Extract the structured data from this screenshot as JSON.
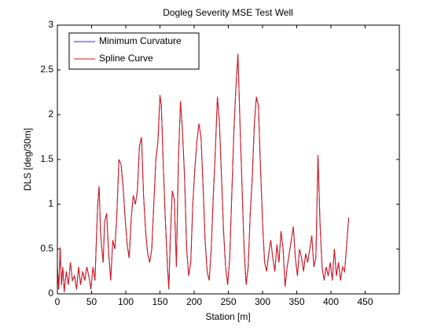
{
  "chart_data": {
    "type": "line",
    "title": "Dogleg Severity MSE Test Well",
    "xlabel": "Station [m]",
    "ylabel": "DLS [deg/30m]",
    "xlim": [
      0,
      500
    ],
    "xticks": [
      0,
      50,
      100,
      150,
      200,
      250,
      300,
      350,
      400,
      450
    ],
    "ylim": [
      0,
      3
    ],
    "yticks": [
      0,
      0.5,
      1,
      1.5,
      2,
      2.5,
      3
    ],
    "grid": false,
    "legend": "upper-left",
    "x": [
      0,
      2,
      4,
      6,
      8,
      10,
      13,
      16,
      19,
      22,
      25,
      28,
      31,
      34,
      37,
      40,
      43,
      46,
      49,
      52,
      55,
      57,
      59,
      61,
      63,
      65,
      67,
      69,
      72,
      75,
      78,
      81,
      84,
      87,
      90,
      93,
      96,
      99,
      102,
      105,
      108,
      111,
      114,
      117,
      120,
      123,
      126,
      129,
      132,
      135,
      138,
      141,
      144,
      147,
      150,
      152,
      155,
      158,
      161,
      163,
      165,
      168,
      171,
      174,
      177,
      180,
      183,
      186,
      189,
      192,
      195,
      198,
      201,
      204,
      207,
      210,
      213,
      216,
      219,
      222,
      225,
      228,
      231,
      234,
      237,
      240,
      243,
      246,
      249,
      252,
      255,
      258,
      261,
      264,
      267,
      270,
      273,
      276,
      279,
      282,
      285,
      288,
      291,
      294,
      297,
      300,
      303,
      306,
      309,
      312,
      315,
      318,
      321,
      324,
      327,
      330,
      333,
      336,
      339,
      342,
      345,
      348,
      351,
      354,
      357,
      360,
      363,
      366,
      369,
      372,
      375,
      378,
      381,
      384,
      387,
      390,
      393,
      396,
      399,
      402,
      405,
      408,
      411,
      414,
      417,
      420,
      423,
      426
    ],
    "series": [
      {
        "name": "Minimum Curvature",
        "color": "#3030b0",
        "values": [
          0.3,
          0.05,
          0.52,
          0.1,
          0.3,
          0.02,
          0.25,
          0.1,
          0.35,
          0.15,
          0.2,
          0.05,
          0.3,
          0.1,
          0.25,
          0.15,
          0.3,
          0.2,
          0.05,
          0.3,
          0.15,
          0.6,
          1.0,
          1.2,
          0.7,
          0.5,
          0.35,
          0.8,
          0.9,
          0.45,
          0.15,
          0.6,
          0.5,
          0.9,
          1.5,
          1.45,
          1.2,
          0.85,
          0.55,
          0.4,
          0.85,
          1.1,
          1.0,
          1.15,
          1.65,
          1.75,
          1.1,
          0.7,
          0.45,
          0.35,
          0.5,
          1.0,
          1.5,
          1.7,
          2.22,
          2.1,
          1.4,
          0.8,
          0.3,
          0.05,
          0.6,
          1.15,
          1.05,
          0.3,
          1.5,
          2.15,
          1.8,
          1.3,
          0.5,
          0.2,
          0.35,
          1.0,
          1.4,
          1.7,
          1.9,
          1.75,
          1.2,
          0.6,
          0.25,
          0.15,
          0.5,
          1.1,
          1.6,
          2.2,
          1.9,
          1.3,
          0.7,
          0.3,
          0.1,
          0.4,
          1.1,
          1.8,
          2.3,
          2.68,
          1.9,
          1.2,
          0.5,
          0.1,
          0.3,
          0.9,
          1.3,
          1.9,
          2.2,
          2.1,
          1.4,
          0.8,
          0.35,
          0.25,
          0.45,
          0.6,
          0.4,
          0.25,
          0.55,
          0.35,
          0.7,
          0.5,
          0.08,
          0.3,
          0.45,
          0.6,
          0.75,
          0.4,
          0.2,
          0.5,
          0.4,
          0.25,
          0.45,
          0.35,
          0.5,
          0.65,
          0.3,
          0.4,
          1.55,
          0.8,
          0.3,
          0.15,
          0.3,
          0.2,
          0.35,
          0.15,
          0.5,
          0.2,
          0.35,
          0.15,
          0.3,
          0.25,
          0.55,
          0.85
        ]
      },
      {
        "name": "Spline Curve",
        "color": "#e01818",
        "values": [
          0.3,
          0.05,
          0.52,
          0.1,
          0.3,
          0.02,
          0.25,
          0.1,
          0.35,
          0.15,
          0.2,
          0.05,
          0.3,
          0.1,
          0.25,
          0.15,
          0.3,
          0.2,
          0.05,
          0.3,
          0.15,
          0.6,
          1.0,
          1.2,
          0.7,
          0.5,
          0.35,
          0.8,
          0.9,
          0.45,
          0.15,
          0.6,
          0.5,
          0.9,
          1.5,
          1.45,
          1.2,
          0.85,
          0.55,
          0.4,
          0.85,
          1.1,
          1.0,
          1.15,
          1.65,
          1.75,
          1.1,
          0.7,
          0.45,
          0.35,
          0.5,
          1.0,
          1.5,
          1.7,
          2.21,
          2.1,
          1.4,
          0.8,
          0.3,
          0.05,
          0.6,
          1.15,
          1.05,
          0.3,
          1.5,
          2.15,
          1.8,
          1.3,
          0.5,
          0.2,
          0.35,
          1.0,
          1.4,
          1.7,
          1.9,
          1.75,
          1.2,
          0.6,
          0.25,
          0.15,
          0.5,
          1.1,
          1.6,
          2.2,
          1.9,
          1.3,
          0.7,
          0.3,
          0.1,
          0.4,
          1.1,
          1.8,
          2.3,
          2.68,
          1.9,
          1.2,
          0.5,
          0.1,
          0.3,
          0.9,
          1.3,
          1.9,
          2.2,
          2.1,
          1.4,
          0.8,
          0.35,
          0.25,
          0.45,
          0.6,
          0.4,
          0.25,
          0.55,
          0.35,
          0.7,
          0.5,
          0.08,
          0.3,
          0.45,
          0.6,
          0.75,
          0.4,
          0.2,
          0.5,
          0.4,
          0.25,
          0.45,
          0.35,
          0.5,
          0.65,
          0.3,
          0.4,
          1.55,
          0.8,
          0.3,
          0.15,
          0.3,
          0.2,
          0.35,
          0.15,
          0.5,
          0.2,
          0.35,
          0.15,
          0.3,
          0.25,
          0.55,
          0.85
        ]
      }
    ]
  }
}
